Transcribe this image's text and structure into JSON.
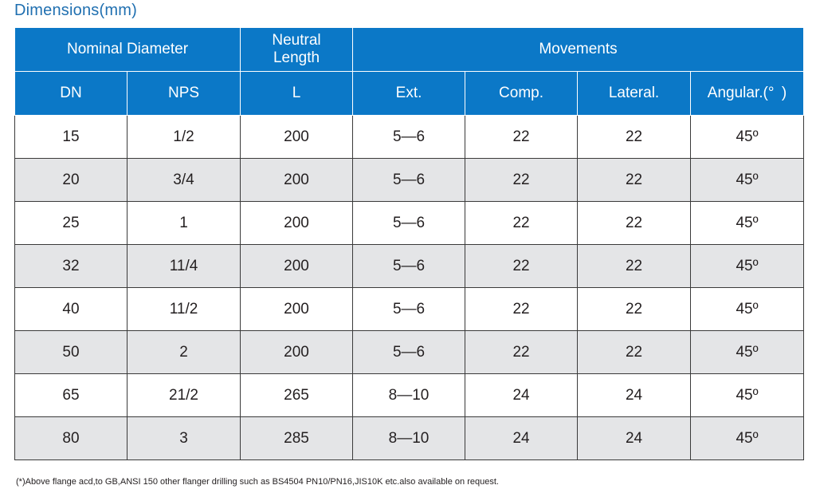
{
  "title": "Dimensions(mm)",
  "headers": {
    "nominal_diameter": "Nominal Diameter",
    "neutral_length_line1": "Neutral",
    "neutral_length_line2": "Length",
    "movements": "Movements",
    "dn": "DN",
    "nps": "NPS",
    "l": "L",
    "ext": "Ext.",
    "comp": "Comp.",
    "lateral": "Lateral.",
    "angular": "Angular.(° )"
  },
  "rows": [
    {
      "dn": "15",
      "nps": "1/2",
      "l": "200",
      "ext": "5—6",
      "comp": "22",
      "lateral": "22",
      "angular": "45º"
    },
    {
      "dn": "20",
      "nps": "3/4",
      "l": "200",
      "ext": "5—6",
      "comp": "22",
      "lateral": "22",
      "angular": "45º"
    },
    {
      "dn": "25",
      "nps": "1",
      "l": "200",
      "ext": "5—6",
      "comp": "22",
      "lateral": "22",
      "angular": "45º"
    },
    {
      "dn": "32",
      "nps": "11/4",
      "l": "200",
      "ext": "5—6",
      "comp": "22",
      "lateral": "22",
      "angular": "45º"
    },
    {
      "dn": "40",
      "nps": "11/2",
      "l": "200",
      "ext": "5—6",
      "comp": "22",
      "lateral": "22",
      "angular": "45º"
    },
    {
      "dn": "50",
      "nps": "2",
      "l": "200",
      "ext": "5—6",
      "comp": "22",
      "lateral": "22",
      "angular": "45º"
    },
    {
      "dn": "65",
      "nps": "21/2",
      "l": "265",
      "ext": "8—10",
      "comp": "24",
      "lateral": "24",
      "angular": "45º"
    },
    {
      "dn": "80",
      "nps": "3",
      "l": "285",
      "ext": "8—10",
      "comp": "24",
      "lateral": "24",
      "angular": "45º"
    }
  ],
  "footnote": "(*)Above flange acd,to GB,ANSI 150 other flanger drilling such as BS4504 PN10/PN16,JIS10K etc.also available on request.",
  "colors": {
    "header_bg": "#0b78c7",
    "title": "#1f6fb0",
    "alt_row_bg": "#e4e5e7"
  }
}
